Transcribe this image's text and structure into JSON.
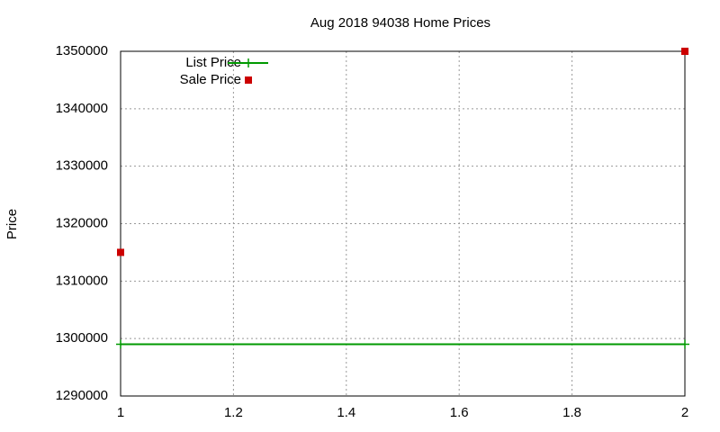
{
  "chart_data": {
    "type": "line",
    "title": "Aug 2018 94038 Home Prices",
    "y_label": "Price",
    "x": [
      1,
      2
    ],
    "series": [
      {
        "name": "List Price",
        "color": "#009900",
        "mode": "linespoints",
        "values": [
          1299000,
          1299000
        ]
      },
      {
        "name": "Sale Price",
        "color": "#cc0000",
        "mode": "points",
        "values": [
          1315000,
          1350000
        ]
      }
    ],
    "xlim": [
      1,
      2
    ],
    "xticks": [
      1,
      1.2,
      1.4,
      1.6,
      1.8,
      2
    ],
    "ylim": [
      1290000,
      1350000
    ],
    "yticks": [
      1290000,
      1300000,
      1310000,
      1320000,
      1330000,
      1340000,
      1350000
    ],
    "grid": true,
    "legend": "top-left"
  }
}
